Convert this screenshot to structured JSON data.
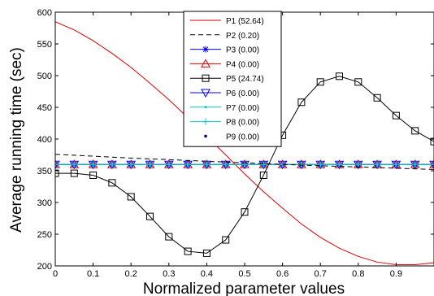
{
  "chart_data": {
    "type": "line",
    "title": "",
    "xlabel": "Normalized parameter values",
    "ylabel": "Average running time (sec)",
    "xlim": [
      0,
      1
    ],
    "ylim": [
      200,
      600
    ],
    "xticks": [
      0,
      0.1,
      0.2,
      0.3,
      0.4,
      0.5,
      0.6,
      0.7,
      0.8,
      0.9
    ],
    "xtick_labels": [
      "0",
      "0.1",
      "0.2",
      "0.3",
      "0.4",
      "0.5",
      "0.6",
      "0.7",
      "0.8",
      "0.9"
    ],
    "yticks": [
      200,
      250,
      300,
      350,
      400,
      450,
      500,
      550,
      600
    ],
    "ytick_labels": [
      "200",
      "250",
      "300",
      "350",
      "400",
      "450",
      "500",
      "550",
      "600"
    ],
    "grid": false,
    "legend_position": "top-center",
    "series": [
      {
        "name": "P1 (52.64)",
        "color": "#e00000",
        "dash": "solid",
        "marker": "none",
        "x": [
          0,
          0.05,
          0.1,
          0.15,
          0.2,
          0.25,
          0.3,
          0.35,
          0.4,
          0.45,
          0.5,
          0.55,
          0.6,
          0.65,
          0.7,
          0.75,
          0.8,
          0.85,
          0.9,
          0.95,
          1.0
        ],
        "y": [
          585,
          572,
          555,
          535,
          513,
          488,
          462,
          434,
          404,
          375,
          345,
          317,
          291,
          266,
          245,
          228,
          215,
          206,
          202,
          202,
          205
        ]
      },
      {
        "name": "P2 (0.20)",
        "color": "#000000",
        "dash": "dashed",
        "marker": "none",
        "x": [
          0,
          0.2,
          0.4,
          0.6,
          0.8,
          1.0
        ],
        "y": [
          376,
          370,
          365,
          360,
          356,
          352
        ]
      },
      {
        "name": "P3 (0.00)",
        "color": "#0000ff",
        "dash": "solid",
        "marker": "asterisk",
        "x": [
          0,
          0.05,
          0.1,
          0.15,
          0.2,
          0.25,
          0.3,
          0.35,
          0.4,
          0.45,
          0.5,
          0.55,
          0.6,
          0.65,
          0.7,
          0.75,
          0.8,
          0.85,
          0.9,
          0.95,
          1.0
        ],
        "y": [
          360,
          360,
          360,
          360,
          360,
          360,
          360,
          360,
          360,
          360,
          360,
          360,
          360,
          360,
          360,
          360,
          360,
          360,
          360,
          360,
          360
        ]
      },
      {
        "name": "P4 (0.00)",
        "color": "#e00000",
        "dash": "solid",
        "marker": "triangle-up",
        "x": [
          0,
          0.05,
          0.1,
          0.15,
          0.2,
          0.25,
          0.3,
          0.35,
          0.4,
          0.45,
          0.5,
          0.55,
          0.6,
          0.65,
          0.7,
          0.75,
          0.8,
          0.85,
          0.9,
          0.95,
          1.0
        ],
        "y": [
          360,
          360,
          360,
          360,
          360,
          360,
          360,
          360,
          360,
          360,
          360,
          360,
          360,
          360,
          360,
          360,
          360,
          360,
          360,
          360,
          360
        ]
      },
      {
        "name": "P5 (24.74)",
        "color": "#000000",
        "dash": "solid",
        "marker": "square",
        "x": [
          0,
          0.05,
          0.1,
          0.15,
          0.2,
          0.25,
          0.3,
          0.35,
          0.4,
          0.45,
          0.5,
          0.55,
          0.6,
          0.65,
          0.7,
          0.75,
          0.8,
          0.85,
          0.9,
          0.95,
          1.0
        ],
        "y": [
          346,
          346,
          343,
          331,
          309,
          278,
          246,
          223,
          220,
          241,
          285,
          343,
          406,
          458,
          490,
          499,
          490,
          465,
          437,
          413,
          396
        ]
      },
      {
        "name": "P6 (0.00)",
        "color": "#0000ff",
        "dash": "solid",
        "marker": "triangle-down",
        "x": [
          0,
          0.05,
          0.1,
          0.15,
          0.2,
          0.25,
          0.3,
          0.35,
          0.4,
          0.45,
          0.5,
          0.55,
          0.6,
          0.65,
          0.7,
          0.75,
          0.8,
          0.85,
          0.9,
          0.95,
          1.0
        ],
        "y": [
          360,
          360,
          360,
          360,
          360,
          360,
          360,
          360,
          360,
          360,
          360,
          360,
          360,
          360,
          360,
          360,
          360,
          360,
          360,
          360,
          360
        ]
      },
      {
        "name": "P7 (0.00)",
        "color": "#00c8c8",
        "dash": "solid",
        "marker": "dot",
        "x": [
          0,
          0.05,
          0.1,
          0.15,
          0.2,
          0.25,
          0.3,
          0.35,
          0.4,
          0.45,
          0.5,
          0.55,
          0.6,
          0.65,
          0.7,
          0.75,
          0.8,
          0.85,
          0.9,
          0.95,
          1.0
        ],
        "y": [
          360,
          360,
          360,
          360,
          360,
          360,
          360,
          360,
          360,
          360,
          360,
          360,
          360,
          360,
          360,
          360,
          360,
          360,
          360,
          360,
          360
        ]
      },
      {
        "name": "P8 (0.00)",
        "color": "#00c8c8",
        "dash": "solid",
        "marker": "plus",
        "x": [
          0,
          0.05,
          0.1,
          0.15,
          0.2,
          0.25,
          0.3,
          0.35,
          0.4,
          0.45,
          0.5,
          0.55,
          0.6,
          0.65,
          0.7,
          0.75,
          0.8,
          0.85,
          0.9,
          0.95,
          1.0
        ],
        "y": [
          360,
          360,
          360,
          360,
          360,
          360,
          360,
          360,
          360,
          360,
          360,
          360,
          360,
          360,
          360,
          360,
          360,
          360,
          360,
          360,
          360
        ]
      },
      {
        "name": "P9 (0.00)",
        "color": "#00008b",
        "dash": "none",
        "marker": "point",
        "x": [],
        "y": []
      }
    ]
  }
}
